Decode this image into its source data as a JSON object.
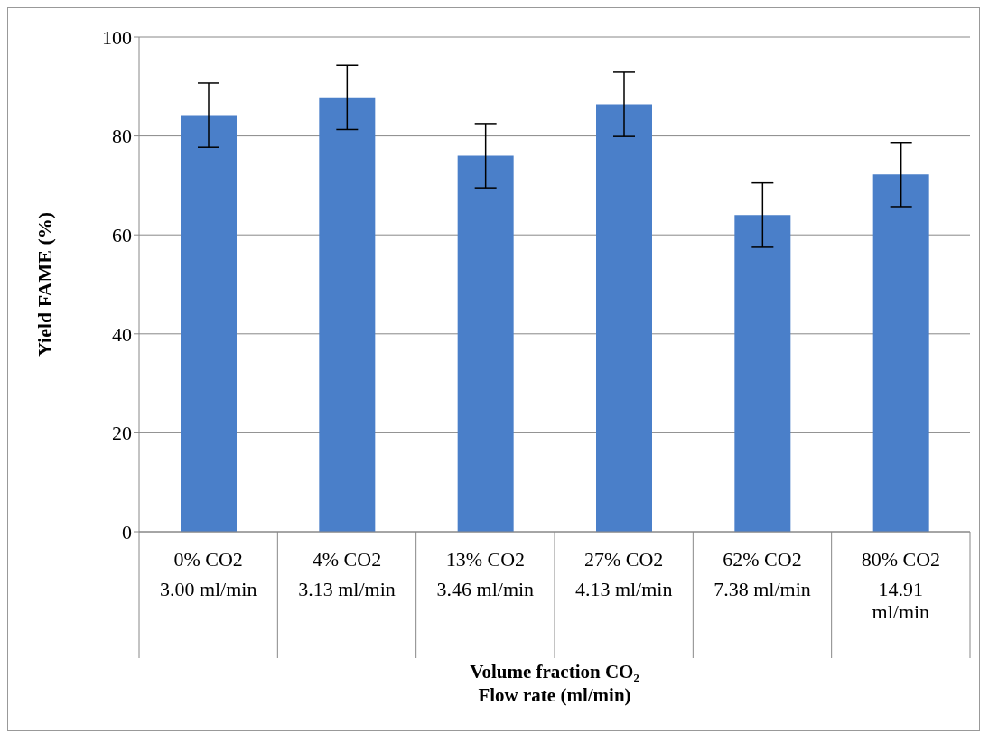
{
  "chart_data": {
    "type": "bar",
    "xlabel": "Volume fraction CO₂\nFlow rate (ml/min)",
    "ylabel": "Yield FAME (%)",
    "categories": [
      "0% CO2\n3.00 ml/min",
      "4% CO2\n3.13 ml/min",
      "13% CO2\n3.46 ml/min",
      "27% CO2\n4.13 ml/min",
      "62% CO2\n7.38 ml/min",
      "80% CO2\n14.91 ml/min"
    ],
    "values": [
      84.2,
      87.8,
      76,
      86.4,
      64,
      72.2
    ],
    "errors": [
      6.5,
      6.5,
      6.5,
      6.5,
      6.5,
      6.5
    ],
    "color": "#4a7fc9",
    "ylim": [
      0,
      100
    ],
    "yticks": [
      0,
      20,
      40,
      60,
      80,
      100
    ],
    "grid": "y",
    "legend": false
  }
}
